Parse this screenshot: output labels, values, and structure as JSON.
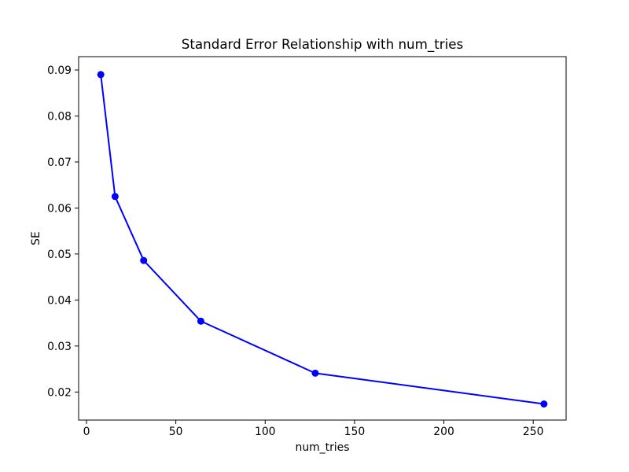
{
  "chart_data": {
    "type": "line",
    "title": "Standard Error Relationship with num_tries",
    "xlabel": "num_tries",
    "ylabel": "SE",
    "x": [
      8,
      16,
      32,
      64,
      128,
      256
    ],
    "y": [
      0.089,
      0.0625,
      0.0486,
      0.0354,
      0.0241,
      0.0174
    ],
    "series": [
      {
        "name": "SE",
        "x": [
          8,
          16,
          32,
          64,
          128,
          256
        ],
        "values": [
          0.089,
          0.0625,
          0.0486,
          0.0354,
          0.0241,
          0.0174
        ]
      }
    ],
    "xlim": [
      -4.4,
      268.4
    ],
    "ylim": [
      0.0139,
      0.0929
    ],
    "xticks": {
      "values": [
        0,
        50,
        100,
        150,
        200,
        250
      ],
      "labels": [
        "0",
        "50",
        "100",
        "150",
        "200",
        "250"
      ]
    },
    "yticks": {
      "values": [
        0.02,
        0.03,
        0.04,
        0.05,
        0.06,
        0.07,
        0.08,
        0.09
      ],
      "labels": [
        "0.02",
        "0.03",
        "0.04",
        "0.05",
        "0.06",
        "0.07",
        "0.08",
        "0.09"
      ]
    },
    "grid": false,
    "legend": "none",
    "marker": "circle",
    "colors": {
      "line": "#0000ff",
      "marker": "#0000ff",
      "spine": "#000000",
      "text": "#000000",
      "background": "#ffffff"
    }
  }
}
